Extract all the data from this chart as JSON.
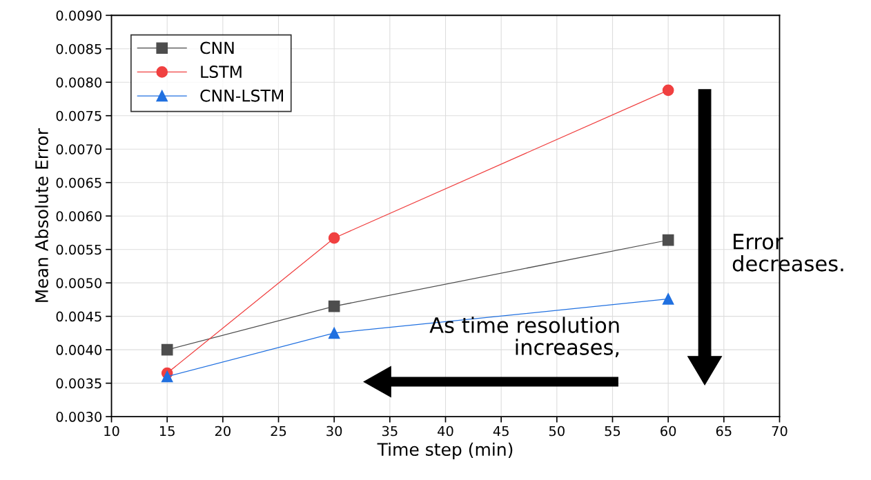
{
  "chart_data": {
    "type": "line",
    "xlabel": "Time step (min)",
    "ylabel": "Mean Absolute Error",
    "x": [
      15,
      30,
      60
    ],
    "series": [
      {
        "name": "CNN",
        "color": "#4d4d4d",
        "marker": "square",
        "values": [
          0.004,
          0.00465,
          0.00564
        ]
      },
      {
        "name": "LSTM",
        "color": "#f04040",
        "marker": "circle",
        "values": [
          0.00365,
          0.00567,
          0.00788
        ]
      },
      {
        "name": "CNN-LSTM",
        "color": "#2070e0",
        "marker": "triangle",
        "values": [
          0.0036,
          0.00425,
          0.00476
        ]
      }
    ],
    "xlim": [
      10,
      70
    ],
    "xticks": [
      10,
      15,
      20,
      25,
      30,
      35,
      40,
      45,
      50,
      55,
      60,
      65,
      70
    ],
    "ylim": [
      0.003,
      0.009
    ],
    "yticks": [
      {
        "value": 0.003,
        "label": "0.0030"
      },
      {
        "value": 0.0035,
        "label": "0.0035"
      },
      {
        "value": 0.004,
        "label": "0.0040"
      },
      {
        "value": 0.0045,
        "label": "0.0045"
      },
      {
        "value": 0.005,
        "label": "0.0050"
      },
      {
        "value": 0.0055,
        "label": "0.0055"
      },
      {
        "value": 0.006,
        "label": "0.0060"
      },
      {
        "value": 0.0065,
        "label": "0.0065"
      },
      {
        "value": 0.007,
        "label": "0.0070"
      },
      {
        "value": 0.0075,
        "label": "0.0075"
      },
      {
        "value": 0.008,
        "label": "0.0080"
      },
      {
        "value": 0.0085,
        "label": "0.0085"
      },
      {
        "value": 0.009,
        "label": "0.0090"
      }
    ],
    "annotations": [
      "As time resolution\nincreases,",
      "Error\ndecreases."
    ],
    "grid": true,
    "legend": "top left",
    "line_style": "solid"
  }
}
